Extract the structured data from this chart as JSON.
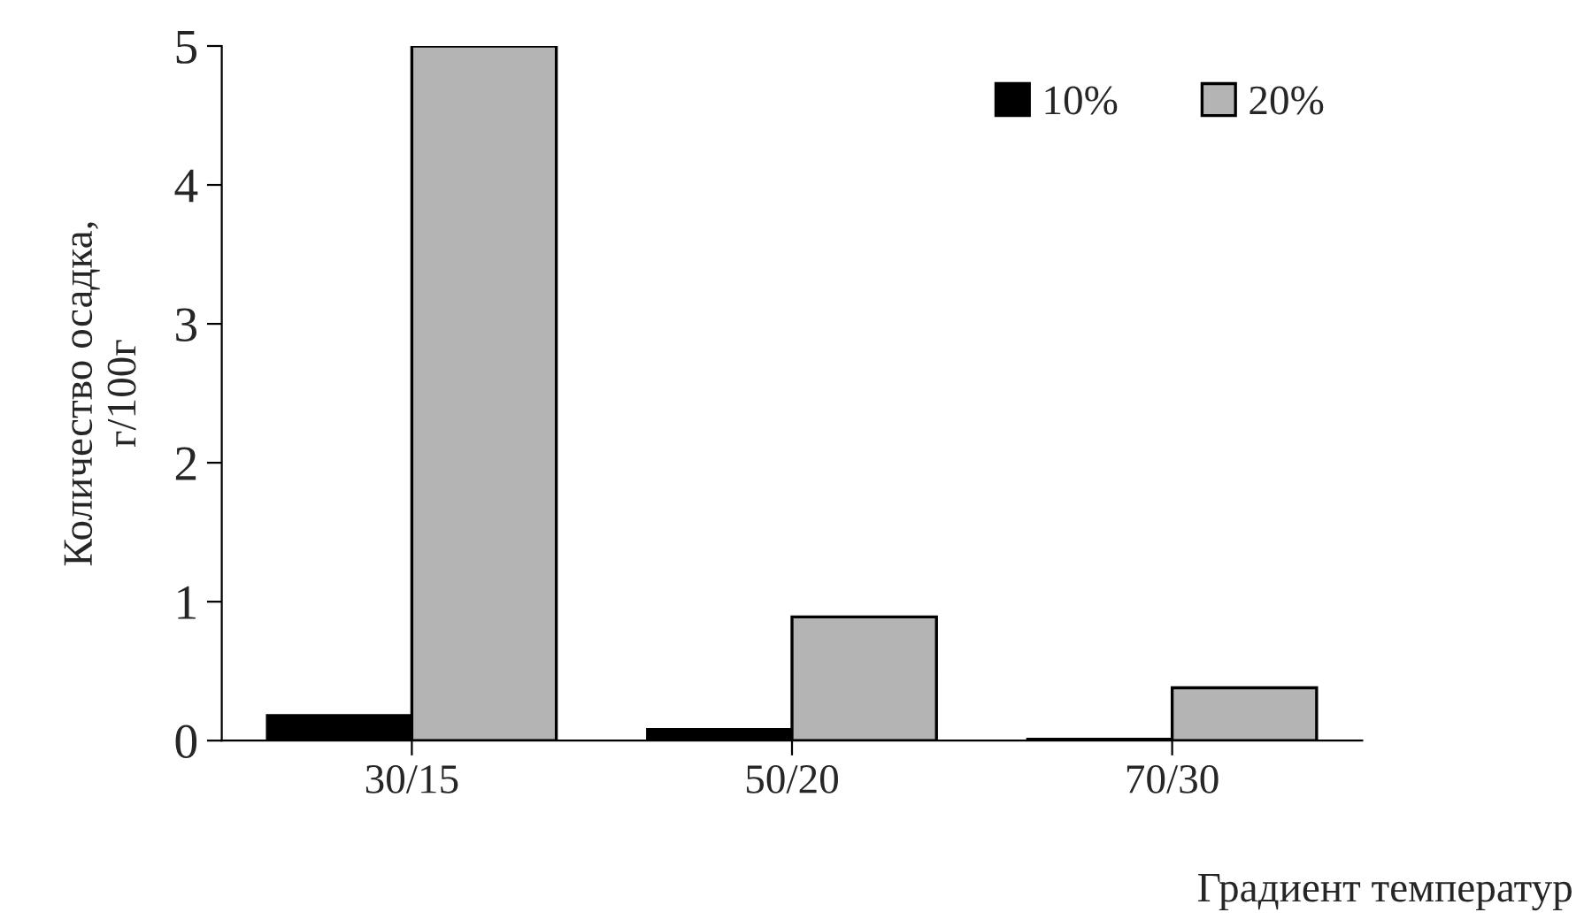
{
  "chart_data": {
    "type": "bar",
    "xlabel": "Градиент температур",
    "ylabel": "Количество осадка,\nг/100г",
    "categories": [
      "30/15",
      "50/20",
      "70/30"
    ],
    "series": [
      {
        "name": "10%",
        "color": "#000000",
        "values": [
          0.18,
          0.08,
          0.01
        ]
      },
      {
        "name": "20%",
        "color": "#b4b4b4",
        "values": [
          5.0,
          0.89,
          0.38
        ]
      }
    ],
    "ylim": [
      0,
      5
    ],
    "yticks": [
      0,
      1,
      2,
      3,
      4,
      5
    ],
    "grid": false,
    "legend": "top right"
  }
}
